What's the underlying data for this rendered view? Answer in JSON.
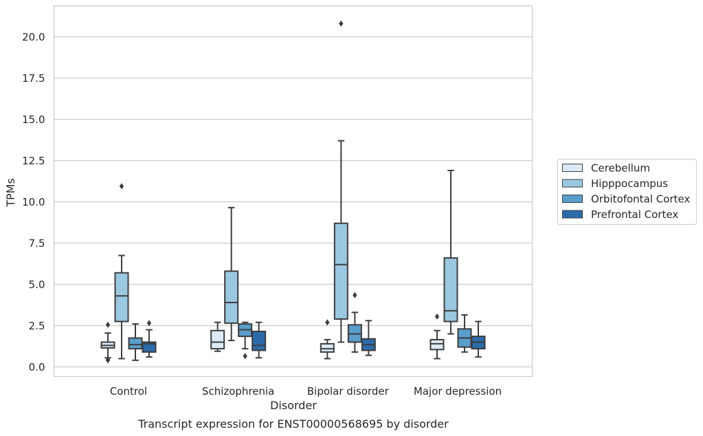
{
  "chart_data": {
    "type": "box",
    "title": "Transcript expression for ENST00000568695 by disorder",
    "xlabel": "Disorder",
    "ylabel": "TPMs",
    "ylim": [
      -0.6,
      21.8
    ],
    "yticks": [
      0.0,
      2.5,
      5.0,
      7.5,
      10.0,
      12.5,
      15.0,
      17.5,
      20.0
    ],
    "ytick_labels": [
      "0.0",
      "2.5",
      "5.0",
      "7.5",
      "10.0",
      "12.5",
      "15.0",
      "17.5",
      "20.0"
    ],
    "categories": [
      "Control",
      "Schizophrenia",
      "Bipolar disorder",
      "Major depression"
    ],
    "grid": "horizontal",
    "legend_position": "right",
    "series": [
      {
        "name": "Cerebellum",
        "color": "#dbe9f6",
        "boxes": [
          {
            "whislo": 0.55,
            "q1": 1.15,
            "med": 1.3,
            "q3": 1.5,
            "whishi": 2.05,
            "fliers": [
              2.55,
              0.45,
              0.4
            ]
          },
          {
            "whislo": 0.95,
            "q1": 1.1,
            "med": 1.5,
            "q3": 2.2,
            "whishi": 2.7,
            "fliers": []
          },
          {
            "whislo": 0.5,
            "q1": 0.9,
            "med": 1.1,
            "q3": 1.4,
            "whishi": 1.65,
            "fliers": [
              2.7
            ]
          },
          {
            "whislo": 0.5,
            "q1": 1.05,
            "med": 1.4,
            "q3": 1.65,
            "whishi": 2.2,
            "fliers": [
              3.05
            ]
          }
        ]
      },
      {
        "name": "Hipppocampus",
        "color": "#9ac8e0",
        "boxes": [
          {
            "whislo": 0.5,
            "q1": 2.75,
            "med": 4.3,
            "q3": 5.7,
            "whishi": 6.75,
            "fliers": [
              10.95
            ]
          },
          {
            "whislo": 1.6,
            "q1": 2.65,
            "med": 3.9,
            "q3": 5.8,
            "whishi": 9.65,
            "fliers": []
          },
          {
            "whislo": 1.5,
            "q1": 2.9,
            "med": 6.2,
            "q3": 8.7,
            "whishi": 13.7,
            "fliers": [
              20.8
            ]
          },
          {
            "whislo": 2.0,
            "q1": 2.75,
            "med": 3.4,
            "q3": 6.6,
            "whishi": 11.9,
            "fliers": []
          }
        ]
      },
      {
        "name": "Orbitofontal Cortex",
        "color": "#5a9ecc",
        "boxes": [
          {
            "whislo": 0.4,
            "q1": 1.1,
            "med": 1.35,
            "q3": 1.75,
            "whishi": 2.6,
            "fliers": []
          },
          {
            "whislo": 1.1,
            "q1": 1.85,
            "med": 2.25,
            "q3": 2.6,
            "whishi": 2.7,
            "fliers": [
              0.65
            ]
          },
          {
            "whislo": 0.9,
            "q1": 1.5,
            "med": 2.0,
            "q3": 2.55,
            "whishi": 3.3,
            "fliers": [
              4.35
            ]
          },
          {
            "whislo": 0.9,
            "q1": 1.2,
            "med": 1.75,
            "q3": 2.3,
            "whishi": 3.15,
            "fliers": []
          }
        ]
      },
      {
        "name": "Prefrontal Cortex",
        "color": "#2b6ba9",
        "boxes": [
          {
            "whislo": 0.6,
            "q1": 0.9,
            "med": 1.4,
            "q3": 1.5,
            "whishi": 2.25,
            "fliers": [
              2.65
            ]
          },
          {
            "whislo": 0.55,
            "q1": 1.0,
            "med": 1.3,
            "q3": 2.15,
            "whishi": 2.7,
            "fliers": []
          },
          {
            "whislo": 0.7,
            "q1": 1.0,
            "med": 1.35,
            "q3": 1.7,
            "whishi": 2.8,
            "fliers": []
          },
          {
            "whislo": 0.6,
            "q1": 1.1,
            "med": 1.5,
            "q3": 1.85,
            "whishi": 2.75,
            "fliers": []
          }
        ]
      }
    ]
  }
}
